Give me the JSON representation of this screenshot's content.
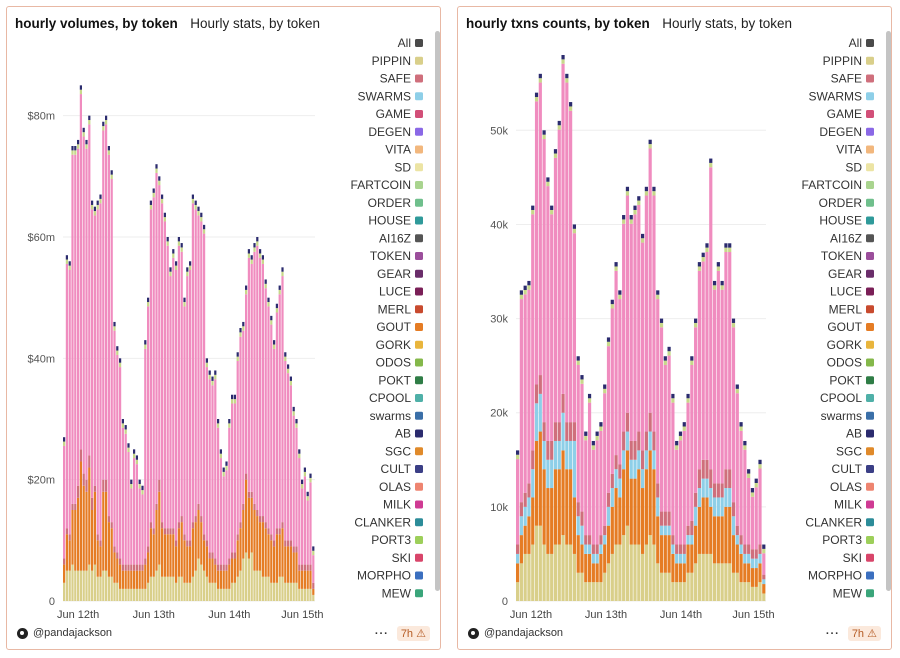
{
  "panels": [
    {
      "title": "hourly volumes, by token",
      "subtitle": "Hourly stats, by token",
      "author": "@pandajackson",
      "age": "7h"
    },
    {
      "title": "hourly txns counts, by token",
      "subtitle": "Hourly stats, by token",
      "author": "@pandajackson",
      "age": "7h"
    }
  ],
  "legend": [
    {
      "name": "All",
      "color": "#4a4a4a"
    },
    {
      "name": "PIPPIN",
      "color": "#d9cf8a"
    },
    {
      "name": "SAFE",
      "color": "#cf6f7c"
    },
    {
      "name": "SWARMS",
      "color": "#8ecfe8"
    },
    {
      "name": "GAME",
      "color": "#d24f78"
    },
    {
      "name": "DEGEN",
      "color": "#8a68e6"
    },
    {
      "name": "VITA",
      "color": "#f2b77d"
    },
    {
      "name": "SD",
      "color": "#ece4a4"
    },
    {
      "name": "FARTCOIN",
      "color": "#a9d48f"
    },
    {
      "name": "ORDER",
      "color": "#6fbf8c"
    },
    {
      "name": "HOUSE",
      "color": "#2f9a9a"
    },
    {
      "name": "AI16Z",
      "color": "#555555"
    },
    {
      "name": "TOKEN",
      "color": "#9b4e9b"
    },
    {
      "name": "GEAR",
      "color": "#6a2d6a"
    },
    {
      "name": "LUCE",
      "color": "#7a1f57"
    },
    {
      "name": "MERL",
      "color": "#c84a2e"
    },
    {
      "name": "GOUT",
      "color": "#e57c24"
    },
    {
      "name": "GORK",
      "color": "#e9b53c"
    },
    {
      "name": "ODOS",
      "color": "#84b84a"
    },
    {
      "name": "POKT",
      "color": "#2f7d46"
    },
    {
      "name": "CPOOL",
      "color": "#4fb0a8"
    },
    {
      "name": "swarms",
      "color": "#3a6fa8"
    },
    {
      "name": "AB",
      "color": "#2b2b6e"
    },
    {
      "name": "SGC",
      "color": "#e08a2a"
    },
    {
      "name": "CULT",
      "color": "#3b3f86"
    },
    {
      "name": "OLAS",
      "color": "#ee8470"
    },
    {
      "name": "MILK",
      "color": "#cf3a93"
    },
    {
      "name": "CLANKER",
      "color": "#2c8c99"
    },
    {
      "name": "PORT3",
      "color": "#9dcf5a"
    },
    {
      "name": "SKI",
      "color": "#d8456a"
    },
    {
      "name": "MORPHO",
      "color": "#3b6fbf"
    },
    {
      "name": "MEW",
      "color": "#3aa57a"
    }
  ],
  "chart_data": [
    {
      "type": "bar",
      "stacked": true,
      "title": "hourly volumes, by token",
      "x_ticks": [
        "Jun 12th",
        "Jun 13th",
        "Jun 14th",
        "Jun 15th"
      ],
      "y_ticks": [
        "0",
        "$20m",
        "$40m",
        "$60m",
        "$80m"
      ],
      "ylim": [
        0,
        90
      ],
      "unit": "millions USD",
      "grid": true,
      "legend": "right",
      "series_colors": {
        "PIPPIN": "#d9cf8a",
        "GOUT": "#e57c24",
        "SGC": "#e08a2a",
        "OTHER": "#cf6f7c",
        "GAME": "#f08cbf",
        "AB": "#2b2b6e"
      },
      "totals": [
        27,
        57,
        56,
        75,
        75,
        76,
        85,
        78,
        76,
        80,
        66,
        65,
        66,
        67,
        79,
        80,
        75,
        71,
        46,
        42,
        40,
        30,
        29,
        26,
        20,
        25,
        24,
        20,
        19,
        43,
        50,
        66,
        68,
        72,
        70,
        67,
        64,
        60,
        55,
        58,
        56,
        60,
        59,
        50,
        55,
        56,
        67,
        66,
        65,
        64,
        62,
        40,
        38,
        37,
        38,
        30,
        25,
        22,
        23,
        30,
        34,
        34,
        41,
        45,
        46,
        52,
        58,
        57,
        59,
        60,
        58,
        57,
        53,
        50,
        47,
        43,
        49,
        52,
        55,
        41,
        39,
        37,
        32,
        30,
        25,
        20,
        22,
        18,
        21,
        9
      ],
      "stack": [
        {
          "name": "PIPPIN",
          "values": [
            3,
            5,
            5,
            6,
            5,
            5,
            5,
            5,
            5,
            6,
            5,
            6,
            4,
            4,
            5,
            5,
            4,
            4,
            3,
            3,
            2,
            2,
            2,
            2,
            2,
            2,
            2,
            2,
            2,
            2,
            3,
            4,
            4,
            5,
            6,
            4,
            4,
            4,
            4,
            4,
            3,
            4,
            4,
            3,
            3,
            3,
            4,
            5,
            7,
            6,
            5,
            4,
            3,
            3,
            3,
            2,
            2,
            2,
            2,
            2,
            3,
            3,
            4,
            5,
            7,
            8,
            7,
            8,
            5,
            5,
            5,
            4,
            4,
            4,
            3,
            3,
            3,
            4,
            4,
            3,
            3,
            3,
            3,
            3,
            2,
            2,
            2,
            2,
            2,
            1
          ]
        },
        {
          "name": "GOUT",
          "values": [
            3,
            6,
            5,
            9,
            10,
            12,
            18,
            14,
            13,
            16,
            10,
            12,
            6,
            5,
            13,
            13,
            9,
            8,
            5,
            4,
            4,
            3,
            3,
            3,
            3,
            3,
            3,
            3,
            3,
            4,
            5,
            8,
            7,
            10,
            12,
            8,
            7,
            7,
            7,
            7,
            6,
            8,
            9,
            7,
            6,
            6,
            8,
            8,
            8,
            7,
            5,
            5,
            4,
            4,
            3,
            3,
            3,
            3,
            3,
            4,
            4,
            4,
            6,
            7,
            8,
            12,
            10,
            9,
            10,
            9,
            8,
            9,
            8,
            7,
            7,
            6,
            8,
            7,
            8,
            6,
            6,
            6,
            5,
            5,
            3,
            3,
            3,
            3,
            3,
            1
          ]
        },
        {
          "name": "OTHER",
          "values": [
            1,
            1,
            1,
            1,
            1,
            2,
            2,
            2,
            2,
            2,
            2,
            1,
            1,
            1,
            2,
            2,
            1,
            1,
            1,
            1,
            1,
            1,
            1,
            1,
            1,
            1,
            1,
            1,
            1,
            1,
            1,
            1,
            1,
            1,
            2,
            1,
            1,
            1,
            1,
            1,
            1,
            1,
            1,
            1,
            1,
            1,
            1,
            1,
            1,
            1,
            1,
            1,
            1,
            1,
            1,
            1,
            1,
            1,
            1,
            1,
            1,
            1,
            1,
            1,
            1,
            1,
            1,
            1,
            1,
            1,
            1,
            1,
            1,
            1,
            1,
            1,
            1,
            1,
            1,
            1,
            1,
            1,
            1,
            1,
            1,
            1,
            1,
            1,
            1,
            1
          ]
        }
      ]
    },
    {
      "type": "bar",
      "stacked": true,
      "title": "hourly txns counts, by token",
      "x_ticks": [
        "Jun 12th",
        "Jun 13th",
        "Jun 14th",
        "Jun 15th"
      ],
      "y_ticks": [
        "0",
        "10k",
        "20k",
        "30k",
        "40k",
        "50k"
      ],
      "ylim": [
        0,
        58000
      ],
      "grid": true,
      "legend": "right",
      "series_colors": {
        "PIPPIN": "#d9cf8a",
        "GOUT": "#e57c24",
        "SWARMS": "#8ecfe8",
        "OTHER": "#cf6f7c",
        "GAME": "#f08cbf",
        "AB": "#2b2b6e"
      },
      "totals": [
        16000,
        33000,
        33500,
        34000,
        42000,
        54000,
        56000,
        50000,
        45000,
        42000,
        48000,
        51000,
        58000,
        56000,
        53000,
        40000,
        26000,
        24000,
        18000,
        22000,
        17000,
        18000,
        19000,
        23000,
        28000,
        32000,
        36000,
        33000,
        41000,
        44000,
        41000,
        42000,
        43000,
        39000,
        44000,
        49000,
        44000,
        33000,
        30000,
        26000,
        27000,
        22000,
        17000,
        18000,
        19000,
        22000,
        26000,
        30000,
        36000,
        37000,
        38000,
        47000,
        34000,
        36000,
        34000,
        38000,
        38000,
        30000,
        23000,
        19000,
        17000,
        14000,
        12000,
        13000,
        15000,
        6000
      ],
      "stack": [
        {
          "name": "PIPPIN",
          "values": [
            2000,
            4000,
            5000,
            5000,
            6000,
            8000,
            8000,
            6000,
            5000,
            5000,
            6000,
            6000,
            7000,
            6000,
            6000,
            5000,
            3000,
            3000,
            2000,
            2000,
            2000,
            2000,
            2000,
            3000,
            4000,
            5000,
            6000,
            6000,
            7000,
            8000,
            6000,
            6000,
            6000,
            5000,
            6000,
            7000,
            6000,
            4000,
            3000,
            3000,
            3000,
            2000,
            2000,
            2000,
            2000,
            3000,
            3000,
            4000,
            5000,
            5000,
            5000,
            5000,
            4000,
            4000,
            4000,
            4000,
            4000,
            3000,
            3000,
            2000,
            2000,
            2000,
            1500,
            1500,
            2000,
            800
          ]
        },
        {
          "name": "GOUT",
          "values": [
            2000,
            3000,
            3000,
            4000,
            5000,
            9000,
            10000,
            8000,
            7000,
            7000,
            8000,
            8000,
            9000,
            8000,
            8000,
            6000,
            4000,
            3000,
            3000,
            3000,
            2000,
            2000,
            3000,
            3000,
            4000,
            5000,
            6000,
            5000,
            7000,
            8000,
            7000,
            7000,
            8000,
            7000,
            8000,
            9000,
            8000,
            5000,
            4000,
            4000,
            4000,
            3000,
            2000,
            2000,
            2000,
            3000,
            3000,
            4000,
            5000,
            6000,
            6000,
            5000,
            5000,
            5000,
            5000,
            6000,
            6000,
            4000,
            3000,
            3000,
            2000,
            2000,
            2000,
            2000,
            2000,
            1000
          ]
        },
        {
          "name": "SWARMS",
          "values": [
            1000,
            2000,
            2000,
            2000,
            3000,
            4000,
            4000,
            3000,
            3000,
            3000,
            3000,
            3000,
            4000,
            3000,
            3000,
            6000,
            2000,
            2000,
            1000,
            1000,
            1000,
            1000,
            1000,
            1000,
            2000,
            2000,
            2000,
            2000,
            2000,
            2000,
            2000,
            2000,
            2000,
            2000,
            2000,
            2000,
            2000,
            2000,
            1000,
            1000,
            1000,
            1000,
            1000,
            1000,
            1000,
            1000,
            1000,
            2000,
            2000,
            2000,
            2000,
            2000,
            2000,
            2000,
            2000,
            2000,
            2000,
            2000,
            1000,
            1000,
            1000,
            1000,
            1000,
            1000,
            1000,
            500
          ]
        },
        {
          "name": "OTHER",
          "values": [
            1000,
            1500,
            1500,
            1500,
            2000,
            2000,
            2000,
            2000,
            2000,
            2000,
            2000,
            2000,
            2000,
            2000,
            2000,
            2000,
            1500,
            1500,
            1000,
            1000,
            1000,
            1000,
            1000,
            1000,
            1500,
            1500,
            1500,
            1500,
            2000,
            2000,
            2000,
            2000,
            2000,
            2000,
            2000,
            2000,
            2000,
            1500,
            1500,
            1500,
            1500,
            1000,
            1000,
            1000,
            1000,
            1000,
            1500,
            1500,
            2000,
            2000,
            2000,
            2000,
            1500,
            1500,
            1500,
            2000,
            2000,
            1500,
            1000,
            1000,
            1000,
            1000,
            1000,
            1000,
            1000,
            500
          ]
        }
      ]
    }
  ]
}
